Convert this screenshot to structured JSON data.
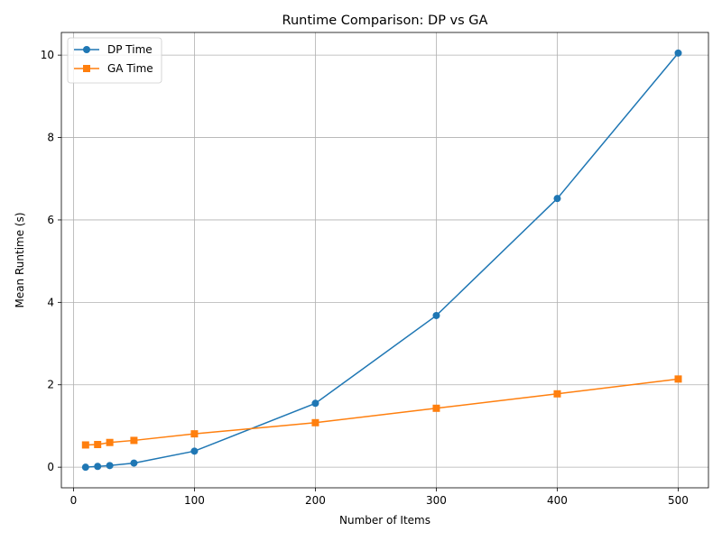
{
  "chart_data": {
    "type": "line",
    "title": "Runtime Comparison: DP vs GA",
    "xlabel": "Number of Items",
    "ylabel": "Mean Runtime (s)",
    "xlim": [
      -10,
      525
    ],
    "ylim": [
      -0.5,
      10.55
    ],
    "xticks": [
      0,
      100,
      200,
      300,
      400,
      500
    ],
    "yticks": [
      0,
      2,
      4,
      6,
      8,
      10
    ],
    "grid": true,
    "legend_position": "top-left",
    "x": [
      10,
      20,
      30,
      50,
      100,
      200,
      300,
      400,
      500
    ],
    "series": [
      {
        "name": "DP Time",
        "color": "#1f77b4",
        "marker": "circle",
        "values": [
          0.0,
          0.02,
          0.04,
          0.1,
          0.39,
          1.55,
          3.68,
          6.52,
          10.05
        ]
      },
      {
        "name": "GA Time",
        "color": "#ff7f0e",
        "marker": "square",
        "values": [
          0.54,
          0.55,
          0.6,
          0.65,
          0.81,
          1.08,
          1.43,
          1.78,
          2.14
        ]
      }
    ]
  }
}
